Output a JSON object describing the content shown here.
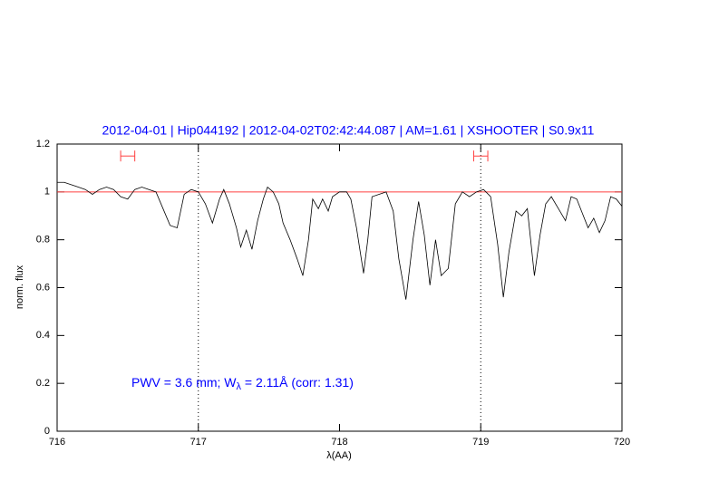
{
  "chart_data": {
    "type": "line",
    "title": "2012-04-01 | Hip044192 | 2012-04-02T02:42:44.087 | AM=1.61 | XSHOOTER | S0.9x11",
    "xlabel": "λ(AA)",
    "ylabel": "norm. flux",
    "annotation": [
      "PWV = 3.6 mm; W",
      "λ",
      " = 2.11Å (corr: 1.31)"
    ],
    "xlim": [
      716,
      720
    ],
    "xticks": [
      716,
      717,
      718,
      719,
      720
    ],
    "ylim": [
      0,
      1.2
    ],
    "yticks": [
      0,
      0.2,
      0.4,
      0.6,
      0.8,
      1,
      1.2
    ],
    "reference_line": 1,
    "reference_color": "#ff4040",
    "vlines": [
      717,
      719
    ],
    "intervals": [
      [
        716.45,
        716.55
      ],
      [
        718.95,
        719.05
      ]
    ],
    "interval_y": 1.15,
    "interval_color": "#ff4040",
    "series": [
      {
        "color": "#000000",
        "x": [
          716.0,
          716.05,
          716.1,
          716.15,
          716.2,
          716.25,
          716.3,
          716.35,
          716.4,
          716.45,
          716.5,
          716.55,
          716.6,
          716.65,
          716.7,
          716.75,
          716.8,
          716.85,
          716.9,
          716.95,
          717.0,
          717.05,
          717.1,
          717.15,
          717.18,
          717.22,
          717.27,
          717.3,
          717.34,
          717.38,
          717.42,
          717.46,
          717.49,
          717.53,
          717.57,
          717.6,
          717.65,
          717.7,
          717.74,
          717.78,
          717.81,
          717.85,
          717.88,
          717.92,
          717.95,
          718.0,
          718.05,
          718.08,
          718.12,
          718.17,
          718.2,
          718.23,
          718.28,
          718.33,
          718.38,
          718.42,
          718.47,
          718.52,
          718.56,
          718.6,
          718.64,
          718.68,
          718.72,
          718.77,
          718.82,
          718.87,
          718.92,
          718.97,
          719.02,
          719.07,
          719.12,
          719.16,
          719.2,
          719.25,
          719.29,
          719.33,
          719.38,
          719.42,
          719.46,
          719.5,
          719.55,
          719.6,
          719.64,
          719.68,
          719.72,
          719.76,
          719.8,
          719.84,
          719.88,
          719.92,
          719.96,
          720.0
        ],
        "values": [
          1.04,
          1.04,
          1.03,
          1.02,
          1.01,
          0.99,
          1.01,
          1.02,
          1.01,
          0.98,
          0.97,
          1.01,
          1.02,
          1.01,
          1.0,
          0.93,
          0.86,
          0.85,
          0.99,
          1.01,
          1.0,
          0.95,
          0.87,
          0.97,
          1.01,
          0.95,
          0.85,
          0.77,
          0.84,
          0.76,
          0.88,
          0.97,
          1.02,
          1.0,
          0.95,
          0.87,
          0.8,
          0.72,
          0.65,
          0.8,
          0.97,
          0.93,
          0.97,
          0.92,
          0.98,
          1.0,
          1.0,
          0.97,
          0.85,
          0.66,
          0.8,
          0.98,
          0.99,
          1.0,
          0.92,
          0.72,
          0.55,
          0.8,
          0.96,
          0.82,
          0.61,
          0.8,
          0.65,
          0.68,
          0.95,
          1.0,
          0.98,
          1.0,
          1.01,
          0.98,
          0.78,
          0.56,
          0.75,
          0.92,
          0.9,
          0.93,
          0.65,
          0.82,
          0.95,
          0.98,
          0.93,
          0.88,
          0.98,
          0.97,
          0.91,
          0.85,
          0.89,
          0.83,
          0.88,
          0.98,
          0.97,
          0.94
        ]
      }
    ]
  }
}
